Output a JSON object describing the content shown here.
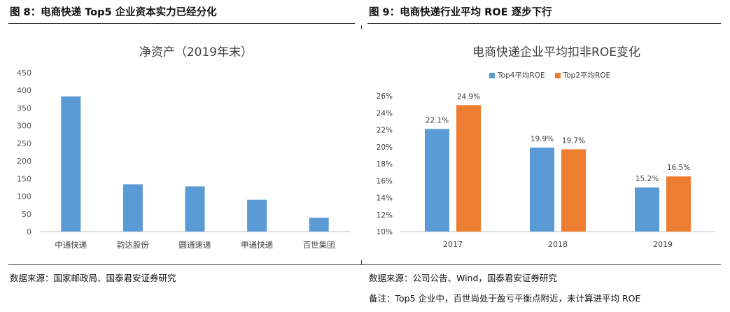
{
  "left": {
    "figure_title": "图 8：电商快递 Top5 企业资本实力已经分化",
    "source": "数据来源：国家邮政局、国泰君安证券研究"
  },
  "right": {
    "figure_title": "图 9：电商快递行业平均 ROE 逐步下行",
    "source": "数据来源：公司公告、Wind，国泰君安证券研究",
    "remark": "备注：Top5 企业中，百世尚处于盈亏平衡点附近，未计算进平均 ROE"
  },
  "chart_data": [
    {
      "type": "bar",
      "title": "净资产（2019年末）",
      "categories": [
        "中通快递",
        "韵达股份",
        "圆通速递",
        "申通快递",
        "百世集团"
      ],
      "values": [
        383,
        134,
        128,
        90,
        39
      ],
      "ylim": [
        0,
        450
      ],
      "yticks": [
        0,
        50,
        100,
        150,
        200,
        250,
        300,
        350,
        400,
        450
      ],
      "grid": false,
      "colors": {
        "bar": "#5b9bd5"
      }
    },
    {
      "type": "bar",
      "title": "电商快递企业平均扣非ROE变化",
      "categories": [
        "2017",
        "2018",
        "2019"
      ],
      "series": [
        {
          "name": "Top4平均ROE",
          "values": [
            22.1,
            19.9,
            15.2
          ],
          "labels": [
            "22.1%",
            "19.9%",
            "15.2%"
          ],
          "color": "#5b9bd5"
        },
        {
          "name": "Top2平均ROE",
          "values": [
            24.9,
            19.7,
            16.5
          ],
          "labels": [
            "24.9%",
            "19.7%",
            "16.5%"
          ],
          "color": "#ed7d31"
        }
      ],
      "ylim": [
        10,
        26
      ],
      "yticks": [
        10,
        12,
        14,
        16,
        18,
        20,
        22,
        24,
        26
      ],
      "ytick_labels": [
        "10%",
        "12%",
        "14%",
        "16%",
        "18%",
        "20%",
        "22%",
        "24%",
        "26%"
      ],
      "legend": "top-center",
      "grid": false
    }
  ]
}
